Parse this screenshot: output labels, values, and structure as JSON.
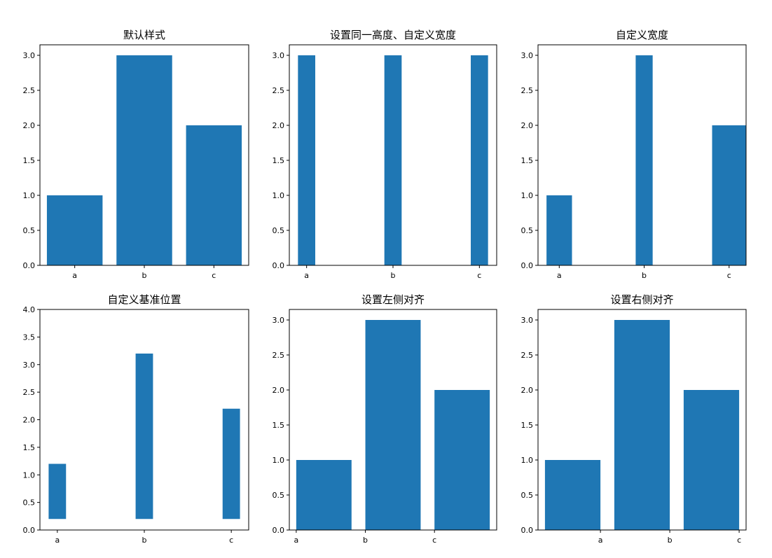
{
  "bar_color": "#1f77b4",
  "chart_data": [
    {
      "type": "bar",
      "title": "默认样式",
      "categories": [
        "a",
        "b",
        "c"
      ],
      "values": [
        1,
        3,
        2
      ],
      "bar_width": 0.8,
      "bottom": [
        0,
        0,
        0
      ],
      "align": "center",
      "ylim": [
        0,
        3.15
      ],
      "yticks": [
        "0.0",
        "0.5",
        "1.0",
        "1.5",
        "2.0",
        "2.5",
        "3.0"
      ],
      "ytick_values": [
        0,
        0.5,
        1,
        1.5,
        2,
        2.5,
        3
      ],
      "xlim": [
        -0.5,
        2.5
      ],
      "xticks": [
        "a",
        "b",
        "c"
      ],
      "xtick_values": [
        0,
        1,
        2
      ]
    },
    {
      "type": "bar",
      "title": "设置同一高度、自定义宽度",
      "categories": [
        "a",
        "b",
        "c"
      ],
      "values": [
        3,
        3,
        3
      ],
      "bar_width": 0.2,
      "bottom": [
        0,
        0,
        0
      ],
      "align": "center",
      "ylim": [
        0,
        3.15
      ],
      "yticks": [
        "0.0",
        "0.5",
        "1.0",
        "1.5",
        "2.0",
        "2.5",
        "3.0"
      ],
      "ytick_values": [
        0,
        0.5,
        1,
        1.5,
        2,
        2.5,
        3
      ],
      "xlim": [
        -0.2,
        2.2
      ],
      "xticks": [
        "a",
        "b",
        "c"
      ],
      "xtick_values": [
        0,
        1,
        2
      ]
    },
    {
      "type": "bar",
      "title": "自定义宽度",
      "categories": [
        "a",
        "b",
        "c"
      ],
      "values": [
        1,
        3,
        2
      ],
      "bar_widths": [
        0.3,
        0.2,
        0.4
      ],
      "bottom": [
        0,
        0,
        0
      ],
      "align": "center",
      "ylim": [
        0,
        3.15
      ],
      "yticks": [
        "0.0",
        "0.5",
        "1.0",
        "1.5",
        "2.0",
        "2.5",
        "3.0"
      ],
      "ytick_values": [
        0,
        0.5,
        1,
        1.5,
        2,
        2.5,
        3
      ],
      "xlim": [
        -0.25,
        2.2
      ],
      "xticks": [
        "a",
        "b",
        "c"
      ],
      "xtick_values": [
        0,
        1,
        2
      ]
    },
    {
      "type": "bar",
      "title": "自定义基准位置",
      "categories": [
        "a",
        "b",
        "c"
      ],
      "values": [
        1,
        3,
        2
      ],
      "bar_width": 0.2,
      "bottom": [
        0.2,
        0.2,
        0.2
      ],
      "align": "center",
      "ylim": [
        0,
        4
      ],
      "yticks": [
        "0.0",
        "0.5",
        "1.0",
        "1.5",
        "2.0",
        "2.5",
        "3.0",
        "3.5",
        "4.0"
      ],
      "ytick_values": [
        0,
        0.5,
        1,
        1.5,
        2,
        2.5,
        3,
        3.5,
        4
      ],
      "xlim": [
        -0.2,
        2.2
      ],
      "xticks": [
        "a",
        "b",
        "c"
      ],
      "xtick_values": [
        0,
        1,
        2
      ]
    },
    {
      "type": "bar",
      "title": "设置左侧对齐",
      "categories": [
        "a",
        "b",
        "c"
      ],
      "values": [
        1,
        3,
        2
      ],
      "bar_width": 0.8,
      "bottom": [
        0,
        0,
        0
      ],
      "align": "edge-left",
      "ylim": [
        0,
        3.15
      ],
      "yticks": [
        "0.0",
        "0.5",
        "1.0",
        "1.5",
        "2.0",
        "2.5",
        "3.0"
      ],
      "ytick_values": [
        0,
        0.5,
        1,
        1.5,
        2,
        2.5,
        3
      ],
      "xlim": [
        -0.1,
        2.9
      ],
      "xticks": [
        "a",
        "b",
        "c"
      ],
      "xtick_values": [
        0,
        1,
        2
      ]
    },
    {
      "type": "bar",
      "title": "设置右侧对齐",
      "categories": [
        "a",
        "b",
        "c"
      ],
      "values": [
        1,
        3,
        2
      ],
      "bar_width": 0.8,
      "bottom": [
        0,
        0,
        0
      ],
      "align": "edge-right",
      "ylim": [
        0,
        3.15
      ],
      "yticks": [
        "0.0",
        "0.5",
        "1.0",
        "1.5",
        "2.0",
        "2.5",
        "3.0"
      ],
      "ytick_values": [
        0,
        0.5,
        1,
        1.5,
        2,
        2.5,
        3
      ],
      "xlim": [
        -0.9,
        2.1
      ],
      "xticks": [
        "a",
        "b",
        "c"
      ],
      "xtick_values": [
        0,
        1,
        2
      ]
    }
  ]
}
